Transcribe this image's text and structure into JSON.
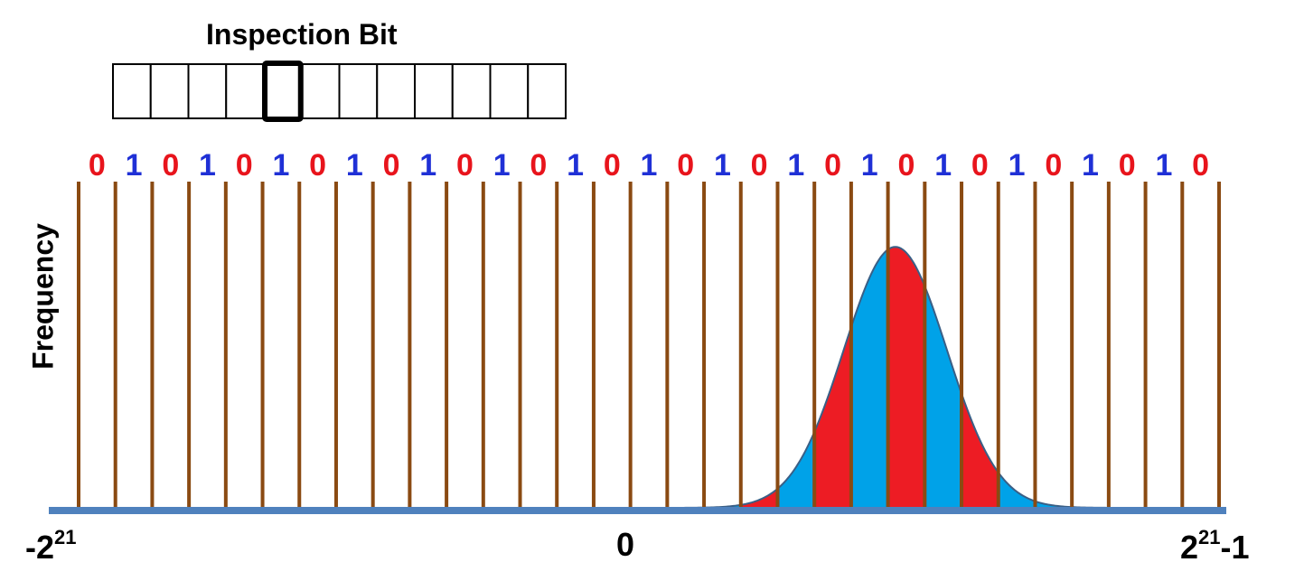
{
  "title": "Inspection Bit",
  "y_axis_label": "Frequency",
  "register": {
    "cell_count": 12,
    "highlighted_index": 4
  },
  "bit_pattern": [
    "0",
    "1",
    "0",
    "1",
    "0",
    "1",
    "0",
    "1",
    "0",
    "1",
    "0",
    "1",
    "0",
    "1",
    "0",
    "1",
    "0",
    "1",
    "0",
    "1",
    "0",
    "1",
    "0",
    "1",
    "0",
    "1",
    "0",
    "1",
    "0",
    "1",
    "0"
  ],
  "colors": {
    "bit_0": "#e8141c",
    "bit_1": "#1f30d6",
    "bin_line": "#8a4a12",
    "axis": "#4f81bd",
    "curve_outline": "#3a5f86",
    "region_red": "#ed1c24",
    "region_blue": "#00a2e8"
  },
  "x_axis": {
    "min_label": {
      "base": "-2",
      "exp": "21"
    },
    "zero_label": "0",
    "max_label": {
      "base": "2",
      "exp": "21",
      "suffix": "-1"
    }
  },
  "chart_data": {
    "type": "area",
    "x_domain": [
      0,
      31
    ],
    "xlim": [
      -2097152,
      2097151
    ],
    "peak_x": 22.2,
    "peak_height": 0.8,
    "sigma": 1.4,
    "colored_bins": [
      {
        "from": 18,
        "to": 19,
        "color": "red"
      },
      {
        "from": 19,
        "to": 20,
        "color": "blue"
      },
      {
        "from": 20,
        "to": 21,
        "color": "red"
      },
      {
        "from": 21,
        "to": 22,
        "color": "blue"
      },
      {
        "from": 22,
        "to": 23,
        "color": "red"
      },
      {
        "from": 23,
        "to": 24,
        "color": "blue"
      },
      {
        "from": 24,
        "to": 25,
        "color": "red"
      }
    ]
  }
}
